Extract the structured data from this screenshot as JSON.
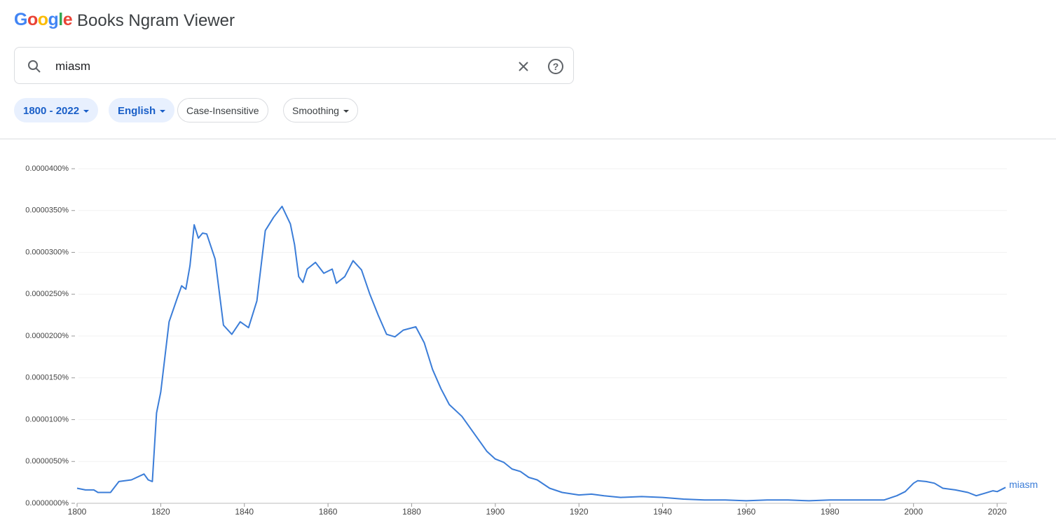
{
  "header": {
    "logo": "Google",
    "title": "Books Ngram Viewer"
  },
  "search": {
    "query": "miasm"
  },
  "filters": [
    "1800 - 2022",
    "English",
    "Case-Insensitive",
    "Smoothing"
  ],
  "chart_data": {
    "type": "line",
    "x": [
      1800,
      1802,
      1804,
      1805,
      1808,
      1810,
      1813,
      1816,
      1817,
      1818,
      1819,
      1820,
      1822,
      1824,
      1825,
      1826,
      1827,
      1828,
      1829,
      1830,
      1831,
      1833,
      1835,
      1837,
      1839,
      1841,
      1843,
      1845,
      1847,
      1849,
      1851,
      1852,
      1853,
      1854,
      1855,
      1857,
      1859,
      1861,
      1862,
      1864,
      1866,
      1868,
      1870,
      1872,
      1874,
      1876,
      1878,
      1881,
      1883,
      1885,
      1887,
      1889,
      1892,
      1895,
      1898,
      1900,
      1902,
      1904,
      1906,
      1908,
      1910,
      1913,
      1916,
      1920,
      1923,
      1926,
      1930,
      1935,
      1940,
      1945,
      1950,
      1955,
      1960,
      1965,
      1970,
      1975,
      1980,
      1985,
      1990,
      1993,
      1996,
      1998,
      2000,
      2001,
      2003,
      2005,
      2007,
      2010,
      2013,
      2015,
      2017,
      2019,
      2020,
      2022
    ],
    "series": [
      {
        "name": "miasm",
        "color": "#3b7dd8",
        "values": [
          1.8e-06,
          1.6e-06,
          1.6e-06,
          1.3e-06,
          1.3e-06,
          2.6e-06,
          2.8e-06,
          3.5e-06,
          2.8e-06,
          2.6e-06,
          1.08e-05,
          1.33e-05,
          2.17e-05,
          2.46e-05,
          2.6e-05,
          2.56e-05,
          2.84e-05,
          3.33e-05,
          3.17e-05,
          3.23e-05,
          3.22e-05,
          2.92e-05,
          2.13e-05,
          2.02e-05,
          2.17e-05,
          2.1e-05,
          2.42e-05,
          3.26e-05,
          3.42e-05,
          3.55e-05,
          3.34e-05,
          3.09e-05,
          2.71e-05,
          2.64e-05,
          2.8e-05,
          2.88e-05,
          2.75e-05,
          2.8e-05,
          2.63e-05,
          2.71e-05,
          2.9e-05,
          2.79e-05,
          2.5e-05,
          2.25e-05,
          2.02e-05,
          1.99e-05,
          2.07e-05,
          2.11e-05,
          1.92e-05,
          1.6e-05,
          1.37e-05,
          1.18e-05,
          1.04e-05,
          8.3e-06,
          6.2e-06,
          5.3e-06,
          4.9e-06,
          4.1e-06,
          3.8e-06,
          3.1e-06,
          2.8e-06,
          1.8e-06,
          1.3e-06,
          1e-06,
          1.1e-06,
          9e-07,
          7e-07,
          8e-07,
          7e-07,
          5e-07,
          4e-07,
          4e-07,
          3e-07,
          4e-07,
          4e-07,
          3e-07,
          4e-07,
          4e-07,
          4e-07,
          4e-07,
          9e-07,
          1.4e-06,
          2.4e-06,
          2.7e-06,
          2.6e-06,
          2.4e-06,
          1.8e-06,
          1.6e-06,
          1.3e-06,
          9e-07,
          1.2e-06,
          1.5e-06,
          1.4e-06,
          1.9e-06
        ]
      }
    ],
    "xlim": [
      1800,
      2022
    ],
    "xticks": [
      1800,
      1820,
      1840,
      1860,
      1880,
      1900,
      1920,
      1940,
      1960,
      1980,
      2000,
      2020
    ],
    "ylim": [
      0,
      4e-05
    ],
    "yticks": [
      {
        "value": 0,
        "label": "0.0000000%"
      },
      {
        "value": 5e-06,
        "label": "0.0000050%"
      },
      {
        "value": 1e-05,
        "label": "0.0000100%"
      },
      {
        "value": 1.5e-05,
        "label": "0.0000150%"
      },
      {
        "value": 2e-05,
        "label": "0.0000200%"
      },
      {
        "value": 2.5e-05,
        "label": "0.0000250%"
      },
      {
        "value": 3e-05,
        "label": "0.0000300%"
      },
      {
        "value": 3.5e-05,
        "label": "0.0000350%"
      },
      {
        "value": 4e-05,
        "label": "0.0000400%"
      }
    ],
    "grid": true
  }
}
